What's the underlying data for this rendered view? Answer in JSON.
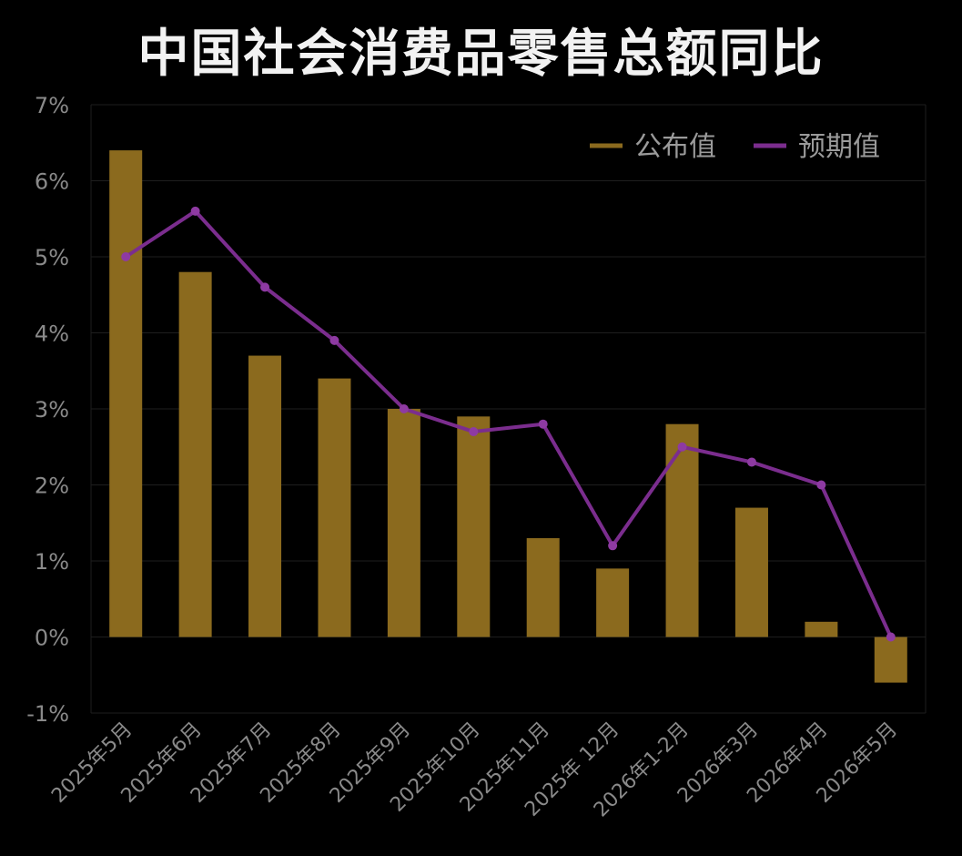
{
  "chart_data": {
    "type": "bar",
    "title": "中国社会消费品零售总额同比",
    "categories": [
      "2025年5月",
      "2025年6月",
      "2025年7月",
      "2025年8月",
      "2025年9月",
      "2025年10月",
      "2025年11月",
      "2025年 12月",
      "2026年1-2月",
      "2026年3月",
      "2026年4月",
      "2026年5月"
    ],
    "series": [
      {
        "name": "公布值",
        "type": "bar",
        "color": "#8b6a1e",
        "values": [
          6.4,
          4.8,
          3.7,
          3.4,
          3.0,
          2.9,
          1.3,
          0.9,
          2.8,
          1.7,
          0.2,
          -0.6
        ]
      },
      {
        "name": "预期值",
        "type": "line",
        "color": "#7b2d8e",
        "values": [
          5.0,
          5.6,
          4.6,
          3.9,
          3.0,
          2.7,
          2.8,
          1.2,
          2.5,
          2.3,
          2.0,
          0.0
        ]
      }
    ],
    "ylim": [
      -1,
      7
    ],
    "yticks": [
      "-1%",
      "0%",
      "1%",
      "2%",
      "3%",
      "4%",
      "5%",
      "6%",
      "7%"
    ],
    "grid": true,
    "legend": "top-right",
    "background": "#000000"
  }
}
